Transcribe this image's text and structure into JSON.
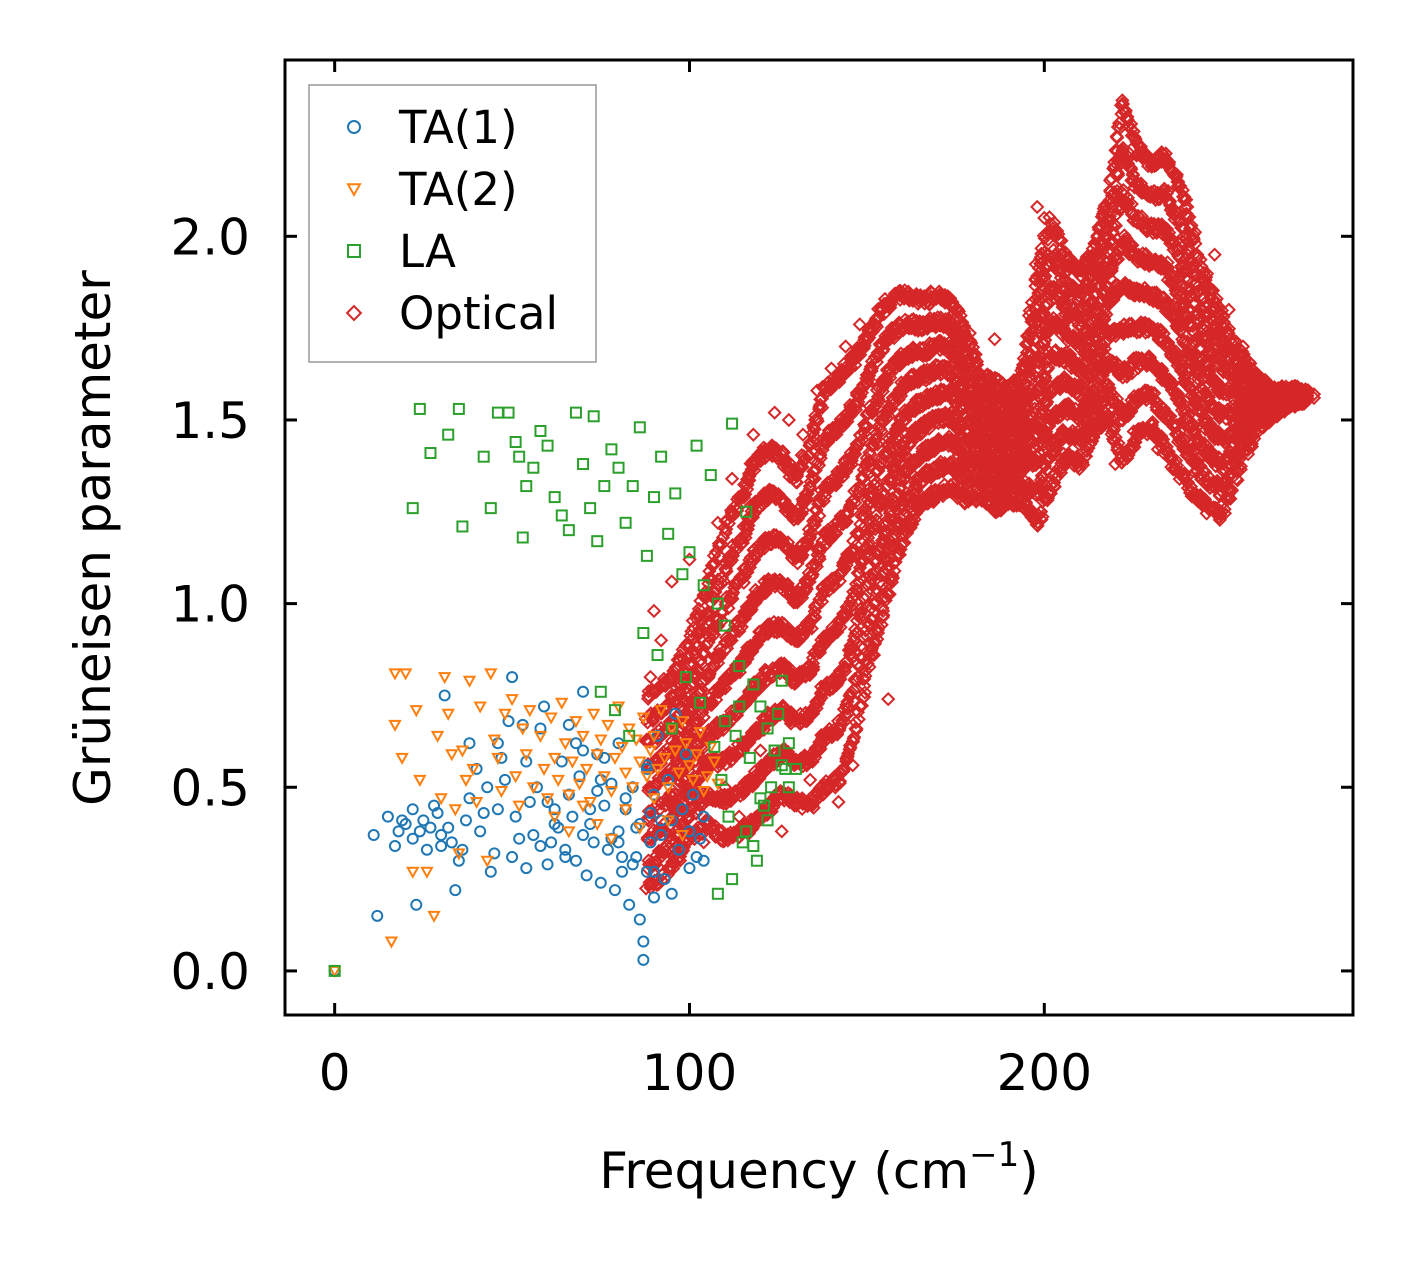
{
  "chart_data": {
    "type": "scatter",
    "title": "",
    "xlabel_main": "Frequency (cm",
    "xlabel_sup": "−1",
    "xlabel_close": ")",
    "ylabel": "Grüneisen parameter",
    "xlim": [
      -14,
      287
    ],
    "ylim": [
      -0.12,
      2.48
    ],
    "xticks": [
      0,
      100,
      200
    ],
    "xtick_labels": [
      "0",
      "100",
      "200"
    ],
    "yticks": [
      0.0,
      0.5,
      1.0,
      1.5,
      2.0
    ],
    "ytick_labels": [
      "0.0",
      "0.5",
      "1.0",
      "1.5",
      "2.0"
    ],
    "grid": false,
    "legend_position": "top-left",
    "series": [
      {
        "name": "TA(1)",
        "marker": "circle",
        "color": "#1f77b4",
        "x": [
          0,
          11,
          12,
          15,
          17,
          18,
          19,
          20,
          22,
          22,
          23,
          24,
          25,
          26,
          27,
          28,
          29,
          30,
          30,
          31,
          32,
          33,
          34,
          35,
          36,
          37,
          38,
          38,
          40,
          41,
          42,
          43,
          44,
          45,
          46,
          46,
          47,
          48,
          49,
          50,
          50,
          51,
          52,
          53,
          54,
          55,
          56,
          57,
          58,
          59,
          60,
          61,
          62,
          63,
          64,
          65,
          66,
          67,
          68,
          69,
          70,
          70,
          71,
          72,
          73,
          74,
          75,
          76,
          77,
          78,
          79,
          80,
          80,
          81,
          82,
          83,
          84,
          85,
          86,
          86,
          87,
          87,
          88,
          88,
          89,
          90,
          90,
          91,
          92,
          93,
          94,
          95,
          96,
          97,
          98,
          99,
          100,
          100,
          101,
          102,
          103,
          104,
          104,
          68,
          72,
          76,
          78,
          82,
          84,
          88,
          92,
          65,
          75,
          85,
          95,
          60,
          70,
          80,
          90,
          66,
          74,
          81,
          89,
          54,
          58,
          62
        ],
        "y": [
          0.0,
          0.37,
          0.15,
          0.42,
          0.34,
          0.38,
          0.41,
          0.4,
          0.36,
          0.44,
          0.18,
          0.38,
          0.41,
          0.33,
          0.39,
          0.45,
          0.43,
          0.37,
          0.34,
          0.75,
          0.39,
          0.35,
          0.22,
          0.3,
          0.33,
          0.41,
          0.62,
          0.47,
          0.55,
          0.38,
          0.43,
          0.5,
          0.27,
          0.32,
          0.62,
          0.44,
          0.58,
          0.52,
          0.68,
          0.8,
          0.31,
          0.42,
          0.36,
          0.67,
          0.28,
          0.46,
          0.37,
          0.5,
          0.66,
          0.72,
          0.29,
          0.35,
          0.44,
          0.39,
          0.57,
          0.31,
          0.48,
          0.42,
          0.3,
          0.53,
          0.37,
          0.76,
          0.26,
          0.4,
          0.35,
          0.59,
          0.24,
          0.45,
          0.33,
          0.51,
          0.22,
          0.38,
          0.62,
          0.27,
          0.44,
          0.18,
          0.5,
          0.31,
          0.14,
          0.4,
          0.08,
          0.03,
          0.27,
          0.56,
          0.35,
          0.2,
          0.48,
          0.64,
          0.37,
          0.25,
          0.52,
          0.41,
          0.7,
          0.33,
          0.44,
          0.59,
          0.28,
          0.38,
          0.48,
          0.31,
          0.36,
          0.42,
          0.3,
          0.62,
          0.44,
          0.58,
          0.36,
          0.47,
          0.29,
          0.55,
          0.41,
          0.33,
          0.52,
          0.39,
          0.21,
          0.46,
          0.6,
          0.35,
          0.27,
          0.67,
          0.49,
          0.31,
          0.43,
          0.57,
          0.34,
          0.4
        ]
      },
      {
        "name": "TA(2)",
        "marker": "triangle-down",
        "color": "#ff7f0e",
        "x": [
          0,
          16,
          17,
          17,
          19,
          20,
          22,
          23,
          24,
          26,
          28,
          29,
          30,
          31,
          32,
          33,
          34,
          35,
          36,
          37,
          38,
          39,
          40,
          41,
          43,
          44,
          45,
          46,
          47,
          48,
          50,
          51,
          52,
          53,
          54,
          55,
          56,
          58,
          59,
          60,
          61,
          62,
          63,
          64,
          65,
          66,
          67,
          68,
          69,
          70,
          71,
          72,
          73,
          74,
          75,
          76,
          77,
          78,
          79,
          80,
          81,
          82,
          83,
          84,
          85,
          86,
          87,
          88,
          89,
          90,
          91,
          92,
          93,
          94,
          95,
          96,
          97,
          98,
          99,
          100,
          101,
          102,
          103,
          104,
          105,
          106,
          107,
          108,
          62,
          66,
          70,
          74,
          78,
          82,
          86,
          90,
          94,
          98
        ],
        "y": [
          0.0,
          0.08,
          0.81,
          0.67,
          0.58,
          0.81,
          0.27,
          0.71,
          0.52,
          0.27,
          0.15,
          0.64,
          0.47,
          0.8,
          0.7,
          0.59,
          0.44,
          0.32,
          0.6,
          0.52,
          0.79,
          0.55,
          0.46,
          0.72,
          0.3,
          0.81,
          0.63,
          0.58,
          0.49,
          0.7,
          0.74,
          0.53,
          0.45,
          0.66,
          0.59,
          0.71,
          0.5,
          0.64,
          0.55,
          0.47,
          0.69,
          0.58,
          0.52,
          0.73,
          0.62,
          0.48,
          0.57,
          0.68,
          0.51,
          0.64,
          0.55,
          0.46,
          0.7,
          0.59,
          0.63,
          0.53,
          0.67,
          0.49,
          0.58,
          0.72,
          0.61,
          0.54,
          0.66,
          0.5,
          0.63,
          0.57,
          0.69,
          0.53,
          0.6,
          0.64,
          0.55,
          0.71,
          0.58,
          0.5,
          0.66,
          0.6,
          0.54,
          0.68,
          0.62,
          0.56,
          0.52,
          0.59,
          0.65,
          0.49,
          0.53,
          0.61,
          0.57,
          0.51,
          0.42,
          0.38,
          0.45,
          0.4,
          0.36,
          0.44,
          0.39,
          0.47,
          0.41,
          0.37
        ]
      },
      {
        "name": "LA",
        "marker": "square",
        "color": "#2ca02c",
        "x": [
          0,
          22,
          24,
          27,
          32,
          35,
          36,
          42,
          44,
          46,
          49,
          51,
          52,
          53,
          54,
          56,
          58,
          60,
          62,
          64,
          66,
          68,
          70,
          72,
          73,
          74,
          76,
          78,
          80,
          82,
          84,
          86,
          88,
          90,
          92,
          94,
          96,
          98,
          100,
          102,
          104,
          106,
          108,
          110,
          112,
          114,
          116,
          118,
          120,
          122,
          124,
          126,
          128,
          130,
          75,
          79,
          83,
          87,
          91,
          95,
          99,
          103,
          107,
          111,
          115,
          119,
          123,
          127,
          109,
          113,
          117,
          121,
          125,
          108,
          112,
          116,
          120,
          124,
          128,
          110,
          114,
          118,
          122,
          126
        ],
        "y": [
          0.0,
          1.26,
          1.53,
          1.41,
          1.46,
          1.53,
          1.21,
          1.4,
          1.26,
          1.52,
          1.52,
          1.44,
          1.4,
          1.18,
          1.32,
          1.37,
          1.47,
          1.43,
          1.29,
          1.24,
          1.2,
          1.52,
          1.38,
          1.26,
          1.51,
          1.17,
          1.32,
          1.42,
          1.37,
          1.22,
          1.32,
          1.48,
          1.13,
          1.29,
          1.4,
          1.19,
          1.3,
          1.08,
          1.14,
          1.43,
          1.05,
          1.35,
          1.0,
          0.94,
          1.49,
          0.83,
          1.25,
          0.78,
          0.72,
          0.66,
          0.6,
          0.56,
          0.5,
          0.55,
          0.76,
          0.71,
          0.64,
          0.92,
          0.86,
          0.66,
          0.8,
          0.73,
          0.61,
          0.42,
          0.35,
          0.3,
          0.5,
          0.55,
          0.52,
          0.64,
          0.58,
          0.45,
          0.7,
          0.21,
          0.25,
          0.38,
          0.47,
          0.6,
          0.62,
          0.68,
          0.72,
          0.34,
          0.41,
          0.79
        ]
      },
      {
        "name": "Optical",
        "marker": "diamond",
        "color": "#d62728",
        "band_x": [
          88,
          95,
          100,
          105,
          110,
          115,
          118,
          122,
          126,
          130,
          134,
          138,
          142,
          146,
          150,
          154,
          158,
          162,
          166,
          170,
          174,
          178,
          182,
          186,
          190,
          194,
          198,
          202,
          206,
          210,
          214,
          218,
          222,
          226,
          230,
          234,
          238,
          242,
          246,
          250,
          255,
          260,
          265,
          270,
          274
        ],
        "band_upper": [
          0.75,
          0.8,
          0.9,
          1.05,
          1.2,
          1.3,
          1.38,
          1.42,
          1.4,
          1.34,
          1.44,
          1.58,
          1.62,
          1.66,
          1.72,
          1.8,
          1.84,
          1.84,
          1.82,
          1.84,
          1.82,
          1.74,
          1.62,
          1.6,
          1.58,
          1.62,
          1.92,
          2.04,
          1.94,
          1.9,
          1.96,
          2.1,
          2.36,
          2.24,
          2.2,
          2.22,
          2.14,
          2.0,
          1.86,
          1.78,
          1.68,
          1.62,
          1.58,
          1.58,
          1.57
        ],
        "band_lower": [
          0.22,
          0.28,
          0.36,
          0.4,
          0.36,
          0.38,
          0.4,
          0.44,
          0.48,
          0.46,
          0.45,
          0.5,
          0.52,
          0.62,
          0.82,
          0.96,
          1.1,
          1.22,
          1.28,
          1.3,
          1.32,
          1.28,
          1.3,
          1.26,
          1.28,
          1.28,
          1.22,
          1.32,
          1.4,
          1.38,
          1.46,
          1.52,
          1.38,
          1.46,
          1.48,
          1.42,
          1.36,
          1.3,
          1.26,
          1.24,
          1.38,
          1.48,
          1.52,
          1.55,
          1.56
        ],
        "outliers_x": [
          89,
          90,
          92,
          95,
          96,
          100,
          104,
          108,
          110,
          112,
          114,
          118,
          120,
          124,
          126,
          128,
          132,
          134,
          136,
          140,
          142,
          144,
          146,
          148,
          152,
          154,
          156,
          160,
          164,
          168,
          172,
          178,
          180,
          184,
          186,
          190,
          194,
          196,
          198,
          200,
          204,
          206,
          208,
          212,
          214,
          218,
          220,
          222,
          224,
          226,
          230,
          232,
          234,
          236,
          240,
          244,
          248,
          250,
          252,
          256,
          260,
          264,
          268,
          272,
          276,
          276
        ],
        "outliers_y": [
          0.8,
          0.98,
          0.9,
          1.06,
          0.62,
          1.12,
          0.35,
          1.22,
          0.5,
          1.34,
          0.42,
          1.46,
          0.6,
          1.52,
          0.38,
          1.5,
          1.46,
          0.52,
          1.58,
          1.64,
          0.46,
          1.7,
          0.56,
          1.76,
          0.86,
          1.8,
          0.74,
          1.84,
          1.83,
          1.85,
          1.84,
          1.3,
          1.68,
          1.36,
          1.72,
          1.42,
          1.65,
          1.3,
          2.08,
          2.05,
          1.4,
          1.9,
          1.42,
          1.92,
          1.52,
          2.0,
          1.38,
          2.37,
          2.3,
          2.22,
          2.21,
          1.42,
          2.2,
          2.18,
          2.1,
          1.4,
          1.95,
          1.25,
          1.8,
          1.7,
          1.62,
          1.58,
          1.57,
          1.56,
          1.57,
          1.56
        ]
      }
    ]
  }
}
